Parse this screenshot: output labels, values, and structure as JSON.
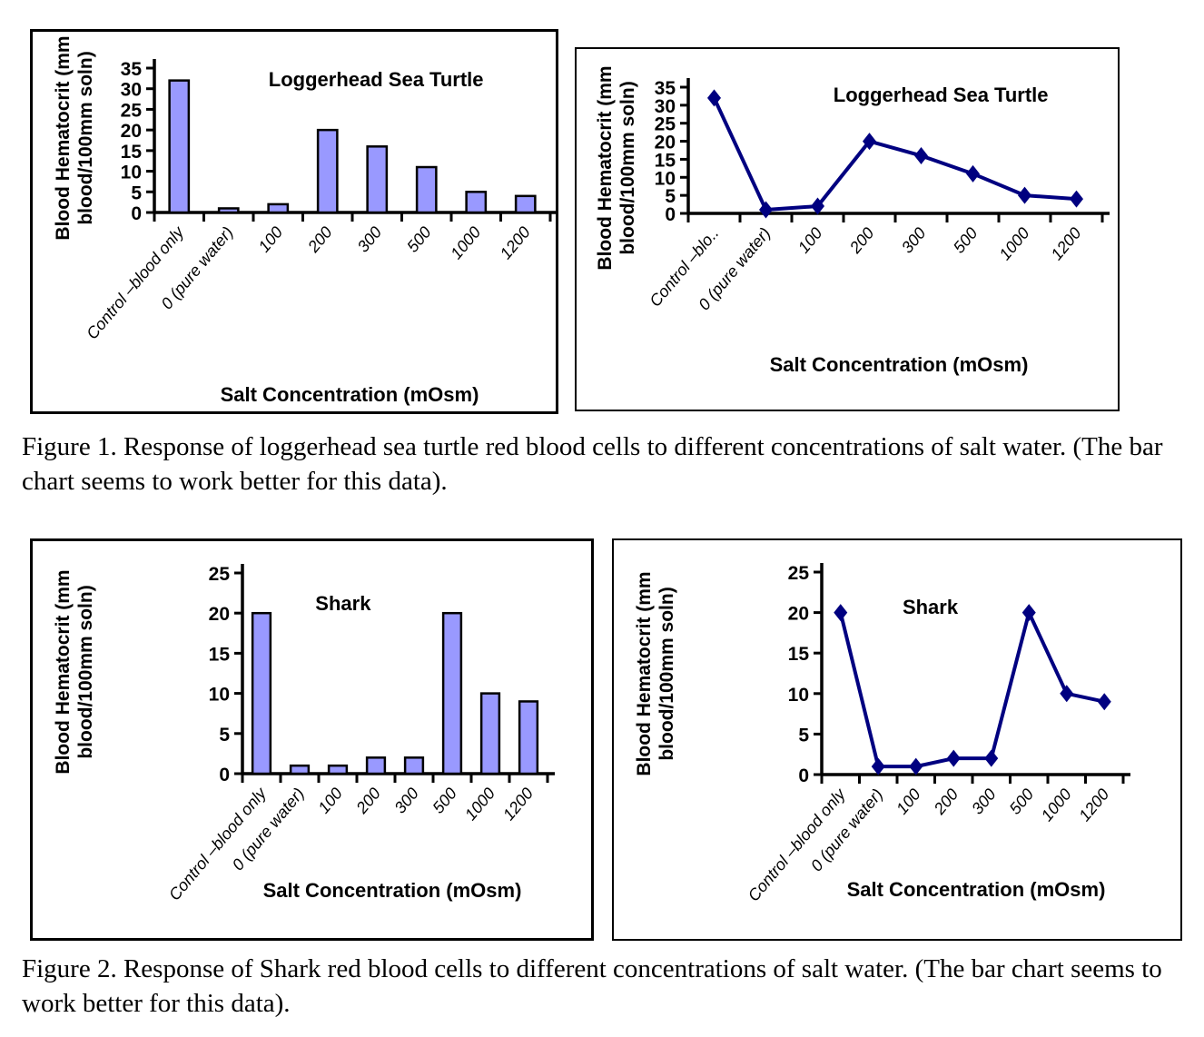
{
  "captions": {
    "figure1": "Figure 1.  Response of loggerhead sea turtle red blood cells to different concentrations of salt water.  (The bar chart seems to work better for this data).",
    "figure2": "Figure 2.  Response of Shark red blood cells to different concentrations of salt water.  (The bar chart seems to work better for this data)."
  },
  "colors": {
    "bar_fill": "#9999FF",
    "bar_stroke": "#000000",
    "line": "#000080",
    "axis": "#000000"
  },
  "chart_data": [
    {
      "type": "bar",
      "title": "Loggerhead Sea Turtle",
      "categories": [
        "Control –blood only",
        "0 (pure water)",
        "100",
        "200",
        "300",
        "500",
        "1000",
        "1200"
      ],
      "values": [
        32,
        1,
        2,
        20,
        16,
        11,
        5,
        4
      ],
      "xlabel": "Salt Concentration (mOsm)",
      "ylabel": "Blood Hematocrit (mm blood/100mm soln)",
      "ylabel_lines": [
        "Blood Hematocrit (mm",
        "blood/100mm soln)"
      ],
      "ylim": [
        0,
        35
      ],
      "ytick_step": 5,
      "grid": false,
      "legend": "none",
      "bar_color": "#9999FF"
    },
    {
      "type": "line",
      "title": "Loggerhead Sea Turtle",
      "categories": [
        "Control –blo..",
        "0 (pure water)",
        "100",
        "200",
        "300",
        "500",
        "1000",
        "1200"
      ],
      "values": [
        32,
        1,
        2,
        20,
        16,
        11,
        5,
        4
      ],
      "xlabel": "Salt Concentration (mOsm)",
      "ylabel": "Blood Hematocrit (mm blood/100mm soln)",
      "ylabel_lines": [
        "Blood Hematocrit (mm",
        "blood/100mm soln)"
      ],
      "ylim": [
        0,
        35
      ],
      "ytick_step": 5,
      "grid": false,
      "legend": "none",
      "line_color": "#000080",
      "marker": "diamond"
    },
    {
      "type": "bar",
      "title": "Shark",
      "categories": [
        "Control –blood only",
        "0 (pure water)",
        "100",
        "200",
        "300",
        "500",
        "1000",
        "1200"
      ],
      "values": [
        20,
        1,
        1,
        2,
        2,
        20,
        10,
        9
      ],
      "xlabel": "Salt Concentration (mOsm)",
      "ylabel": "Blood Hematocrit (mm blood/100mm soln)",
      "ylabel_lines": [
        "Blood Hematocrit (mm",
        "blood/100mm soln)"
      ],
      "ylim": [
        0,
        25
      ],
      "ytick_step": 5,
      "grid": false,
      "legend": "none",
      "bar_color": "#9999FF"
    },
    {
      "type": "line",
      "title": "Shark",
      "categories": [
        "Control –blood only",
        "0 (pure water)",
        "100",
        "200",
        "300",
        "500",
        "1000",
        "1200"
      ],
      "values": [
        20,
        1,
        1,
        2,
        2,
        20,
        10,
        9
      ],
      "xlabel": "Salt Concentration (mOsm)",
      "ylabel": "Blood Hematocrit (mm blood/100mm soln)",
      "ylabel_lines": [
        "Blood Hematocrit (mm",
        "blood/100mm soln)"
      ],
      "ylim": [
        0,
        25
      ],
      "ytick_step": 5,
      "grid": false,
      "legend": "none",
      "line_color": "#000080",
      "marker": "diamond"
    }
  ]
}
